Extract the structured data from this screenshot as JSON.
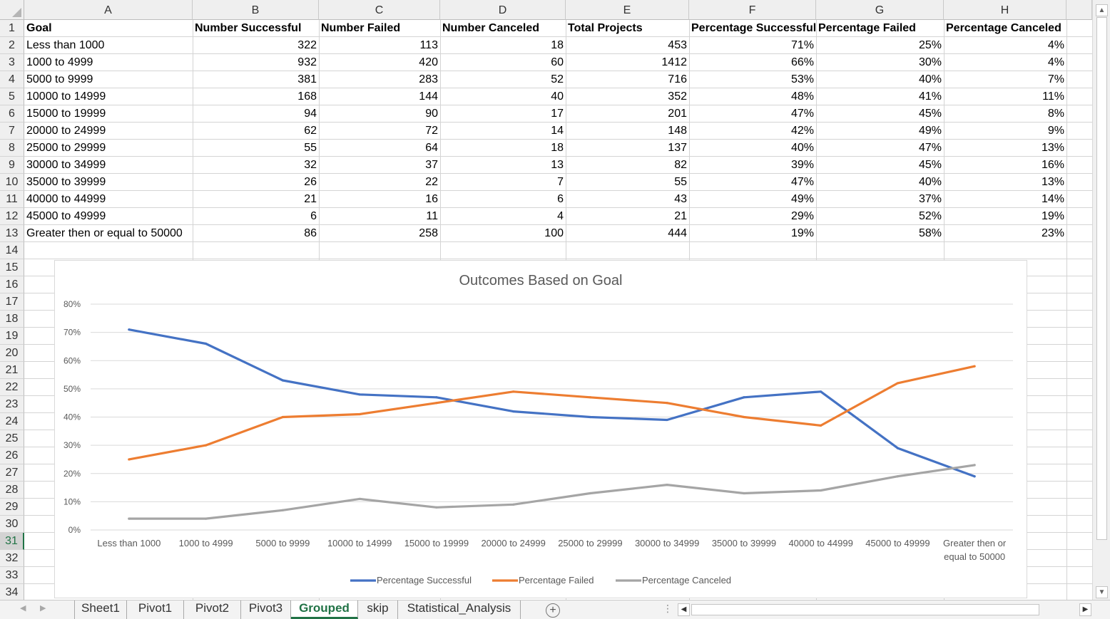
{
  "columns": [
    "A",
    "B",
    "C",
    "D",
    "E",
    "F",
    "G",
    "H"
  ],
  "rows": [
    "1",
    "2",
    "3",
    "4",
    "5",
    "6",
    "7",
    "8",
    "9",
    "10",
    "11",
    "12",
    "13",
    "14",
    "15",
    "16",
    "17",
    "18",
    "19",
    "20",
    "21",
    "22",
    "23",
    "24",
    "25",
    "26",
    "27",
    "28",
    "29",
    "30",
    "31",
    "32",
    "33",
    "34"
  ],
  "selected_row": "31",
  "table": {
    "headers": [
      "Goal",
      "Number Successful",
      "Number Failed",
      "Number Canceled",
      "Total Projects",
      "Percentage Successful",
      "Percentage Failed",
      "Percentage Canceled"
    ],
    "rows": [
      [
        "Less than 1000",
        "322",
        "113",
        "18",
        "453",
        "71%",
        "25%",
        "4%"
      ],
      [
        "1000 to 4999",
        "932",
        "420",
        "60",
        "1412",
        "66%",
        "30%",
        "4%"
      ],
      [
        "5000 to 9999",
        "381",
        "283",
        "52",
        "716",
        "53%",
        "40%",
        "7%"
      ],
      [
        "10000 to 14999",
        "168",
        "144",
        "40",
        "352",
        "48%",
        "41%",
        "11%"
      ],
      [
        "15000 to 19999",
        "94",
        "90",
        "17",
        "201",
        "47%",
        "45%",
        "8%"
      ],
      [
        "20000 to 24999",
        "62",
        "72",
        "14",
        "148",
        "42%",
        "49%",
        "9%"
      ],
      [
        "25000 to 29999",
        "55",
        "64",
        "18",
        "137",
        "40%",
        "47%",
        "13%"
      ],
      [
        "30000 to 34999",
        "32",
        "37",
        "13",
        "82",
        "39%",
        "45%",
        "16%"
      ],
      [
        "35000 to 39999",
        "26",
        "22",
        "7",
        "55",
        "47%",
        "40%",
        "13%"
      ],
      [
        "40000 to 44999",
        "21",
        "16",
        "6",
        "43",
        "49%",
        "37%",
        "14%"
      ],
      [
        "45000 to 49999",
        "6",
        "11",
        "4",
        "21",
        "29%",
        "52%",
        "19%"
      ],
      [
        "Greater then or equal to 50000",
        "86",
        "258",
        "100",
        "444",
        "19%",
        "58%",
        "23%"
      ]
    ]
  },
  "chart_data": {
    "type": "line",
    "title": "Outcomes Based on Goal",
    "categories": [
      "Less than 1000",
      "1000 to 4999",
      "5000 to 9999",
      "10000 to 14999",
      "15000 to 19999",
      "20000 to 24999",
      "25000 to 29999",
      "30000 to 34999",
      "35000 to 39999",
      "40000 to 44999",
      "45000 to 49999",
      "Greater then or equal to 50000"
    ],
    "category_display": [
      [
        "Less than 1000"
      ],
      [
        "1000 to 4999"
      ],
      [
        "5000 to 9999"
      ],
      [
        "10000 to 14999"
      ],
      [
        "15000 to 19999"
      ],
      [
        "20000 to 24999"
      ],
      [
        "25000 to 29999"
      ],
      [
        "30000 to 34999"
      ],
      [
        "35000 to 39999"
      ],
      [
        "40000 to 44999"
      ],
      [
        "45000 to 49999"
      ],
      [
        "Greater then or",
        "equal to 50000"
      ]
    ],
    "series": [
      {
        "name": "Percentage Successful",
        "color": "#4472C4",
        "values": [
          71,
          66,
          53,
          48,
          47,
          42,
          40,
          39,
          47,
          49,
          29,
          19
        ]
      },
      {
        "name": "Percentage Failed",
        "color": "#ED7D31",
        "values": [
          25,
          30,
          40,
          41,
          45,
          49,
          47,
          45,
          40,
          37,
          52,
          58
        ]
      },
      {
        "name": "Percentage Canceled",
        "color": "#A5A5A5",
        "values": [
          4,
          4,
          7,
          11,
          8,
          9,
          13,
          16,
          13,
          14,
          19,
          23
        ]
      }
    ],
    "y_ticks": [
      "0%",
      "10%",
      "20%",
      "30%",
      "40%",
      "50%",
      "60%",
      "70%",
      "80%"
    ],
    "ylim": [
      0,
      80
    ],
    "grid": true,
    "legend": "bottom"
  },
  "sheet_tabs": [
    "Sheet1",
    "Pivot1",
    "Pivot2",
    "Pivot3",
    "Grouped",
    "skip",
    "Statistical_Analysis"
  ],
  "active_tab": "Grouped",
  "icons": {
    "add_sheet": "+",
    "more": "⋮",
    "scroll_up": "▲",
    "scroll_down": "▼",
    "scroll_left": "◀",
    "scroll_right": "▶",
    "nav_prev": "◀",
    "nav_next": "▶"
  }
}
